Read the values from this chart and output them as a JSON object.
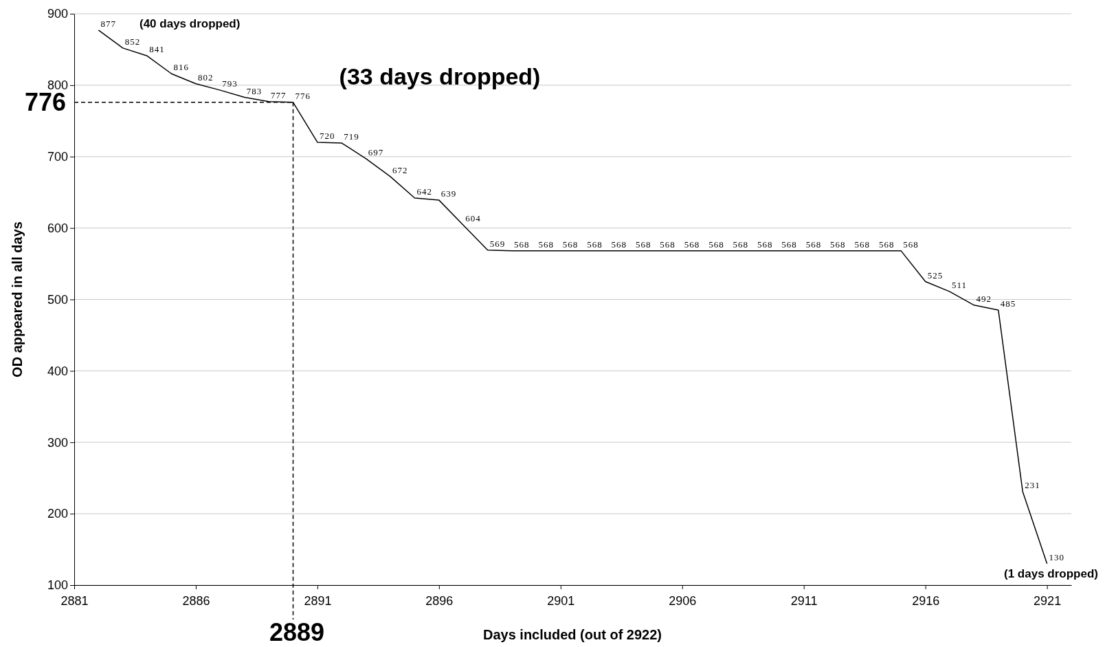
{
  "chart_data": {
    "type": "line",
    "xlabel": "Days included (out of 2922)",
    "ylabel": "OD appeared in all days",
    "x": [
      2882,
      2883,
      2884,
      2885,
      2886,
      2887,
      2888,
      2889,
      2890,
      2891,
      2892,
      2893,
      2894,
      2895,
      2896,
      2897,
      2898,
      2899,
      2900,
      2901,
      2902,
      2903,
      2904,
      2905,
      2906,
      2907,
      2908,
      2909,
      2910,
      2911,
      2912,
      2913,
      2914,
      2915,
      2916,
      2917,
      2918,
      2919,
      2920,
      2921
    ],
    "series": [
      {
        "color": "#000000",
        "values": [
          877,
          852,
          841,
          816,
          802,
          793,
          783,
          777,
          776,
          720,
          719,
          697,
          672,
          642,
          639,
          604,
          569,
          568,
          568,
          568,
          568,
          568,
          568,
          568,
          568,
          568,
          568,
          568,
          568,
          568,
          568,
          568,
          568,
          568,
          525,
          511,
          492,
          485,
          231,
          130
        ]
      }
    ],
    "xlim": [
      2881,
      2922
    ],
    "xticks": [
      2881,
      2886,
      2891,
      2896,
      2901,
      2906,
      2911,
      2916,
      2921
    ],
    "ylim": [
      100,
      900
    ],
    "yticks": [
      100,
      200,
      300,
      400,
      500,
      600,
      700,
      800,
      900
    ],
    "grid": "y",
    "data_labels": true,
    "marker": "none",
    "line_style": "solid",
    "ref_lines": [
      {
        "axis": "y",
        "value": 776,
        "label": "776",
        "line_style": "dashed",
        "color": "#000000"
      },
      {
        "axis": "x",
        "value": 2890,
        "line_style": "dashed",
        "color": "#000000"
      }
    ],
    "annotations": [
      "(40 days dropped)",
      "(33 days dropped)",
      "(1 days dropped)",
      "2889"
    ]
  }
}
